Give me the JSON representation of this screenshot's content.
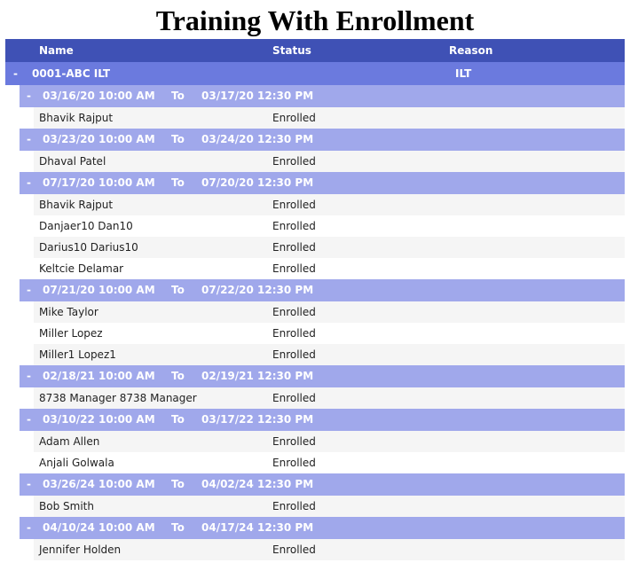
{
  "title": "Training With Enrollment",
  "columns": {
    "name": "Name",
    "status": "Status",
    "reason": "Reason"
  },
  "group": {
    "toggle": "-",
    "name": "0001-ABC ILT",
    "reason": "ILT"
  },
  "sessions": [
    {
      "start": "03/16/20 10:00 AM",
      "to": "To",
      "end": "03/17/20 12:30 PM",
      "rows": [
        {
          "name": "Bhavik Rajput",
          "status": "Enrolled"
        }
      ]
    },
    {
      "start": "03/23/20 10:00 AM",
      "to": "To",
      "end": "03/24/20 12:30 PM",
      "rows": [
        {
          "name": "Dhaval Patel",
          "status": "Enrolled"
        }
      ]
    },
    {
      "start": "07/17/20 10:00 AM",
      "to": "To",
      "end": "07/20/20 12:30 PM",
      "rows": [
        {
          "name": "Bhavik Rajput",
          "status": "Enrolled"
        },
        {
          "name": "Danjaer10 Dan10",
          "status": "Enrolled"
        },
        {
          "name": "Darius10 Darius10",
          "status": "Enrolled"
        },
        {
          "name": "Keltcie Delamar",
          "status": "Enrolled"
        }
      ]
    },
    {
      "start": "07/21/20 10:00 AM",
      "to": "To",
      "end": "07/22/20 12:30 PM",
      "rows": [
        {
          "name": "Mike Taylor",
          "status": "Enrolled"
        },
        {
          "name": "Miller Lopez",
          "status": "Enrolled"
        },
        {
          "name": "Miller1 Lopez1",
          "status": "Enrolled"
        }
      ]
    },
    {
      "start": "02/18/21 10:00 AM",
      "to": "To",
      "end": "02/19/21 12:30 PM",
      "rows": [
        {
          "name": "8738 Manager 8738 Manager",
          "status": "Enrolled"
        }
      ]
    },
    {
      "start": "03/10/22 10:00 AM",
      "to": "To",
      "end": "03/17/22 12:30 PM",
      "rows": [
        {
          "name": "Adam Allen",
          "status": "Enrolled"
        },
        {
          "name": "Anjali Golwala",
          "status": "Enrolled"
        }
      ]
    },
    {
      "start": "03/26/24 10:00 AM",
      "to": "To",
      "end": "04/02/24 12:30 PM",
      "rows": [
        {
          "name": "Bob Smith",
          "status": "Enrolled"
        }
      ]
    },
    {
      "start": "04/10/24 10:00 AM",
      "to": "To",
      "end": "04/17/24 12:30 PM",
      "rows": [
        {
          "name": "Jennifer Holden",
          "status": "Enrolled"
        }
      ]
    }
  ]
}
